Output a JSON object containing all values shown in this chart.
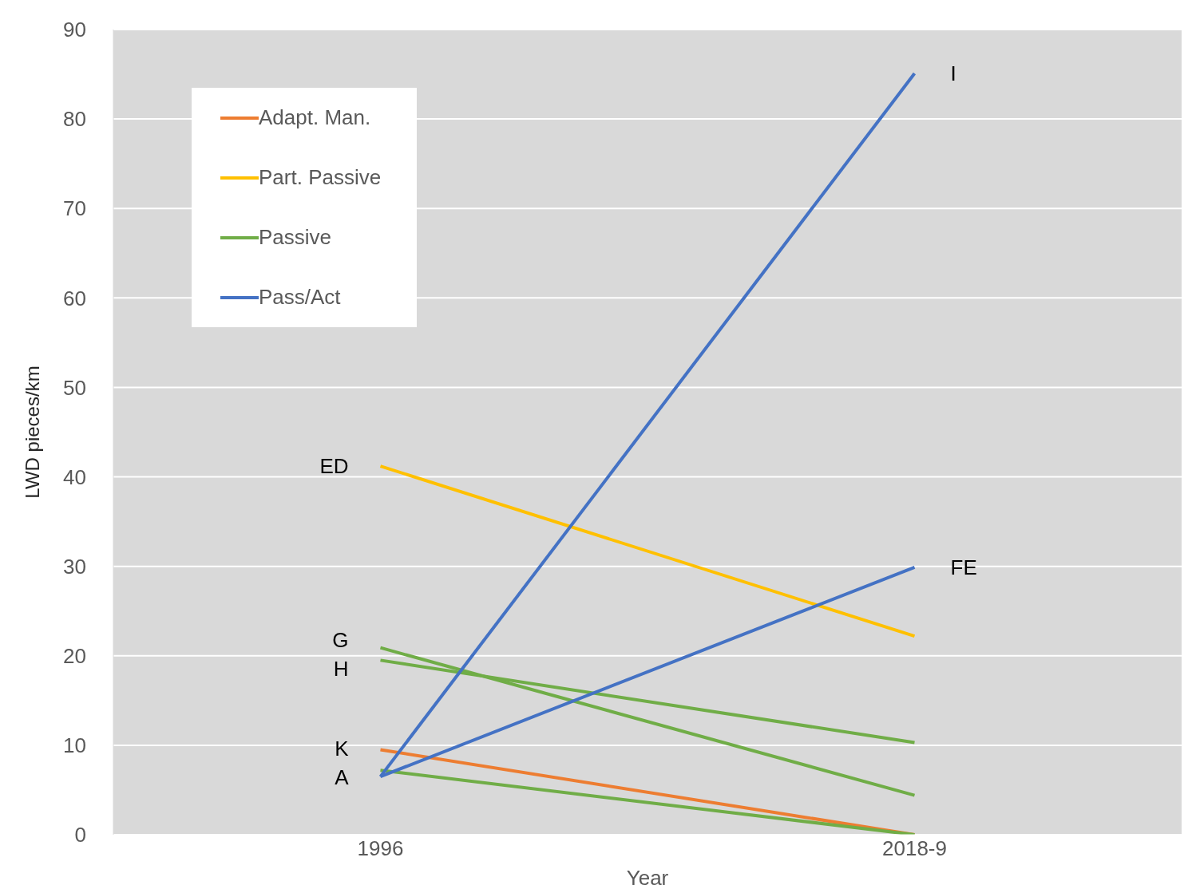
{
  "chart_data": {
    "type": "line",
    "xlabel": "Year",
    "ylabel": "LWD pieces/km",
    "categories": [
      "1996",
      "2018-9"
    ],
    "series": [
      {
        "name": "Adapt. Man.",
        "color": "#ed7d31",
        "values": [
          9.5,
          0
        ]
      },
      {
        "name": "Part. Passive",
        "color": "#ffc000",
        "values": [
          41.2,
          22.2
        ]
      },
      {
        "name": "Passive",
        "color": "#70ad47",
        "values": [
          20.9,
          4.4
        ]
      },
      {
        "color": "#70ad47",
        "values": [
          19.5,
          10.3
        ]
      },
      {
        "color": "#70ad47",
        "values": [
          7.2,
          0
        ]
      },
      {
        "name": "Pass/Act",
        "color": "#4472c4",
        "values": [
          6.5,
          85.1
        ]
      },
      {
        "color": "#4472c4",
        "values": [
          6.5,
          29.9
        ]
      }
    ],
    "ylim": [
      0,
      90
    ],
    "yticks": [
      0,
      10,
      20,
      30,
      40,
      50,
      60,
      70,
      80,
      90
    ],
    "grid": "y",
    "legend": "top left",
    "marker": "none",
    "line_style": "solid",
    "annotations": [
      {
        "text": "ED",
        "x": "1996",
        "y": 41.2
      },
      {
        "text": "G",
        "x": "1996",
        "y": 20.9
      },
      {
        "text": "H",
        "x": "1996",
        "y": 19.5
      },
      {
        "text": "K",
        "x": "1996",
        "y": 9.5
      },
      {
        "text": "A",
        "x": "1996",
        "y": 6.5
      },
      {
        "text": "I",
        "x": "2018-9",
        "y": 85.1
      },
      {
        "text": "FE",
        "x": "2018-9",
        "y": 29.9
      }
    ]
  }
}
